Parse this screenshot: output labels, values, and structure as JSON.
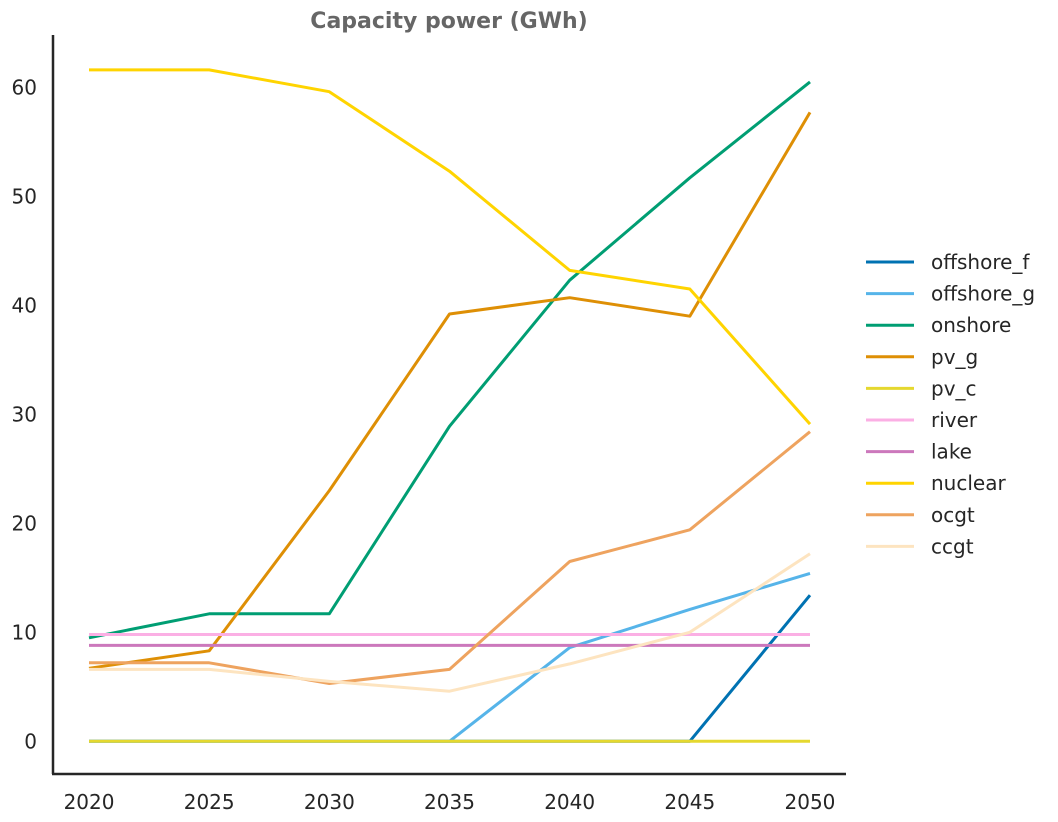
{
  "chart_data": {
    "type": "line",
    "title": "Capacity power (GWh)",
    "xlabel": "",
    "ylabel": "",
    "x": [
      2020,
      2025,
      2030,
      2035,
      2040,
      2045,
      2050
    ],
    "xticks": [
      "2020",
      "2025",
      "2030",
      "2035",
      "2040",
      "2045",
      "2050"
    ],
    "yticks": [
      "0",
      "10",
      "20",
      "30",
      "40",
      "50",
      "60"
    ],
    "xlim": [
      2018.5,
      2051.5
    ],
    "ylim": [
      -3,
      64.8
    ],
    "grid": false,
    "legend_position": "center-right",
    "series": [
      {
        "name": "offshore_f",
        "color": "#0072b2",
        "values": [
          0,
          0,
          0,
          0,
          0,
          0,
          13.4
        ]
      },
      {
        "name": "offshore_g",
        "color": "#56b4e9",
        "values": [
          0,
          0,
          0,
          0,
          8.6,
          12.1,
          15.4
        ]
      },
      {
        "name": "onshore",
        "color": "#009e73",
        "values": [
          9.5,
          11.7,
          11.7,
          28.9,
          42.3,
          51.7,
          60.5
        ]
      },
      {
        "name": "pv_g",
        "color": "#de8f05",
        "values": [
          6.7,
          8.3,
          23.0,
          39.2,
          40.7,
          39.0,
          57.7
        ]
      },
      {
        "name": "pv_c",
        "color": "#e5d82f",
        "values": [
          0,
          0,
          0,
          0,
          0,
          0,
          0
        ]
      },
      {
        "name": "river",
        "color": "#fbafe4",
        "values": [
          9.8,
          9.8,
          9.8,
          9.8,
          9.8,
          9.8,
          9.8
        ]
      },
      {
        "name": "lake",
        "color": "#cc78bc",
        "values": [
          8.8,
          8.8,
          8.8,
          8.8,
          8.8,
          8.8,
          8.8
        ]
      },
      {
        "name": "nuclear",
        "color": "#ffd400",
        "values": [
          61.6,
          61.6,
          59.6,
          52.3,
          43.2,
          41.5,
          29.1
        ]
      },
      {
        "name": "ocgt",
        "color": "#eea35f",
        "values": [
          7.2,
          7.2,
          5.3,
          6.6,
          16.5,
          19.4,
          28.4
        ]
      },
      {
        "name": "ccgt",
        "color": "#fde4c0",
        "values": [
          6.6,
          6.6,
          5.5,
          4.6,
          7.1,
          10.0,
          17.2
        ]
      }
    ]
  }
}
